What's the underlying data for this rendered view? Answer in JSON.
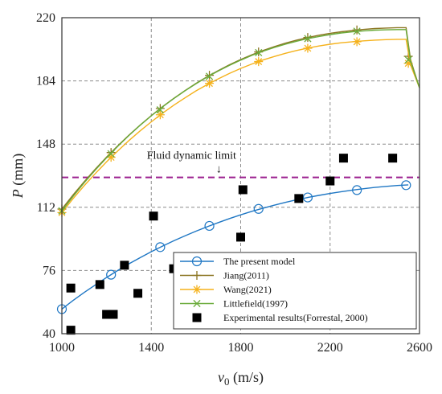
{
  "chart_data": {
    "type": "line",
    "xlabel_main": "v",
    "xlabel_sub": "0",
    "xlabel_unit": " (m/s)",
    "ylabel_main": "P",
    "ylabel_unit": " (mm)",
    "xlim": [
      1000,
      2600
    ],
    "ylim": [
      40,
      220
    ],
    "xticks": [
      1000,
      1400,
      1800,
      2200,
      2600
    ],
    "yticks": [
      40,
      76,
      112,
      148,
      184,
      220
    ],
    "grid": true,
    "legend_position": "bottom-right",
    "annotation": {
      "text": "Fluid dynamic limit",
      "arrow": "↓"
    },
    "fluid_limit": 129,
    "series": [
      {
        "name": "The present model",
        "color": "#1f77c4",
        "marker": "circle",
        "x": [
          1000,
          1050,
          1100,
          1150,
          1200,
          1250,
          1300,
          1350,
          1400,
          1450,
          1500,
          1550,
          1600,
          1650,
          1700,
          1750,
          1800,
          1850,
          1900,
          1950,
          2000,
          2050,
          2100,
          2150,
          2200,
          2250,
          2300,
          2350,
          2400,
          2450,
          2500,
          2550
        ],
        "y": [
          54,
          58.9,
          63.5,
          67.8,
          72.0,
          76.0,
          79.8,
          83.3,
          86.7,
          89.9,
          92.9,
          95.7,
          98.4,
          100.9,
          103.3,
          105.6,
          107.7,
          109.7,
          111.5,
          113.2,
          114.8,
          116.3,
          117.6,
          118.8,
          119.9,
          120.9,
          121.8,
          122.6,
          123.3,
          123.9,
          124.4,
          124.8
        ],
        "marker_x": [
          1000,
          1220,
          1440,
          1660,
          1880,
          2100,
          2320,
          2540
        ],
        "marker_y": [
          54,
          73.6,
          89.3,
          101.4,
          111.1,
          117.6,
          121.8,
          124.6
        ]
      },
      {
        "name": "Jiang(2011)",
        "color": "#8a7420",
        "marker": "plus",
        "x": [
          1000,
          1050,
          1100,
          1150,
          1200,
          1250,
          1300,
          1350,
          1400,
          1450,
          1500,
          1550,
          1600,
          1650,
          1700,
          1750,
          1800,
          1850,
          1900,
          1950,
          2000,
          2050,
          2100,
          2150,
          2200,
          2250,
          2300,
          2350,
          2400,
          2450,
          2500,
          2540,
          2560,
          2600
        ],
        "y": [
          111,
          119,
          126.6,
          133.8,
          140.6,
          147.0,
          153.1,
          158.8,
          164.2,
          169.3,
          174.0,
          178.4,
          182.6,
          186.4,
          189.9,
          193.2,
          196.2,
          198.9,
          201.3,
          203.5,
          205.5,
          207.2,
          208.7,
          210.0,
          211.1,
          212.0,
          212.7,
          213.3,
          213.8,
          214.1,
          214.3,
          214.3,
          196,
          180
        ],
        "marker_x": [
          1000,
          1220,
          1440,
          1660,
          1880,
          2100,
          2320,
          2550
        ],
        "marker_y": [
          111,
          143.2,
          168.3,
          187.2,
          200.5,
          208.7,
          213.0,
          198
        ]
      },
      {
        "name": "Wang(2021)",
        "color": "#f5b21c",
        "marker": "asterisk",
        "x": [
          1000,
          1050,
          1100,
          1150,
          1200,
          1250,
          1300,
          1350,
          1400,
          1450,
          1500,
          1550,
          1600,
          1650,
          1700,
          1750,
          1800,
          1850,
          1900,
          1950,
          2000,
          2050,
          2100,
          2150,
          2200,
          2250,
          2300,
          2350,
          2400,
          2450,
          2500,
          2540,
          2560,
          2600
        ],
        "y": [
          109,
          116.9,
          124.3,
          131.3,
          137.9,
          144.1,
          150.0,
          155.5,
          160.7,
          165.6,
          170.1,
          174.3,
          178.3,
          181.9,
          185.2,
          188.3,
          191.1,
          193.6,
          195.9,
          197.9,
          199.7,
          201.3,
          202.7,
          203.9,
          204.9,
          205.7,
          206.3,
          206.8,
          207.2,
          207.5,
          207.7,
          207.7,
          193,
          180
        ],
        "marker_x": [
          1000,
          1220,
          1440,
          1660,
          1880,
          2100,
          2320,
          2550
        ],
        "marker_y": [
          109,
          140.5,
          164.7,
          182.6,
          195.0,
          202.6,
          206.3,
          194
        ]
      },
      {
        "name": "Littlefield(1997)",
        "color": "#6aab3a",
        "marker": "x",
        "x": [
          1000,
          1050,
          1100,
          1150,
          1200,
          1250,
          1300,
          1350,
          1400,
          1450,
          1500,
          1550,
          1600,
          1650,
          1700,
          1750,
          1800,
          1850,
          1900,
          1950,
          2000,
          2050,
          2100,
          2150,
          2200,
          2250,
          2300,
          2350,
          2400,
          2450,
          2500,
          2540,
          2560,
          2600
        ],
        "y": [
          110,
          118.2,
          126.0,
          133.3,
          140.2,
          146.7,
          152.9,
          158.7,
          164.1,
          169.2,
          173.9,
          178.3,
          182.4,
          186.2,
          189.7,
          192.9,
          195.8,
          198.5,
          200.9,
          203.0,
          204.9,
          206.6,
          208.1,
          209.3,
          210.4,
          211.3,
          212.0,
          212.5,
          212.9,
          213.1,
          213.2,
          213.2,
          195,
          180
        ],
        "marker_x": [
          1000,
          1220,
          1440,
          1660,
          1880,
          2100,
          2320,
          2550
        ],
        "marker_y": [
          110,
          142.5,
          167.5,
          186.6,
          200.1,
          208.1,
          212.3,
          196
        ]
      },
      {
        "name": "Experimental results(Forrestal, 2000)",
        "color": "#000000",
        "marker": "square",
        "scatter": true,
        "x": [
          1040,
          1040,
          1170,
          1200,
          1230,
          1280,
          1340,
          1410,
          1500,
          1800,
          1810,
          2060,
          2200,
          2260,
          2480
        ],
        "y": [
          66,
          42,
          68,
          51,
          51,
          79,
          63,
          107,
          77,
          95,
          122,
          117,
          127,
          140,
          140
        ]
      }
    ]
  }
}
